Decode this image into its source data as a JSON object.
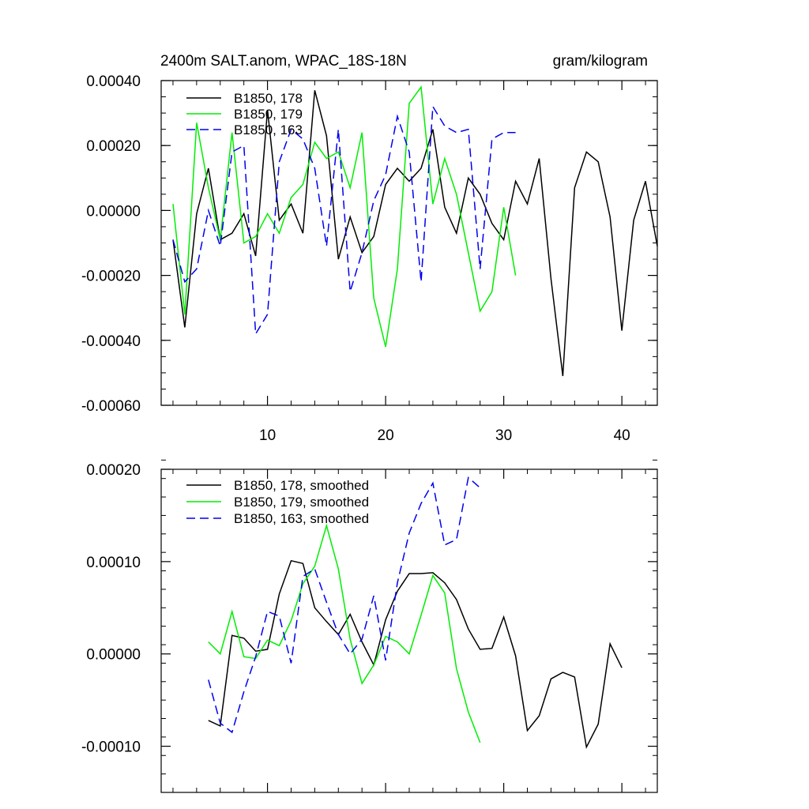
{
  "chart_data": [
    {
      "type": "line",
      "title": "2400m SALT.anom, WPAC_18S-18N",
      "units": "gram/kilogram",
      "xlim": [
        1,
        43
      ],
      "ylim": [
        -0.0006,
        0.0004
      ],
      "xticks": [
        10,
        20,
        30,
        40
      ],
      "xtick_labels": [
        "10",
        "20",
        "30",
        "40"
      ],
      "yticks": [
        -0.0006,
        -0.0004,
        -0.0002,
        0,
        0.0002,
        0.0004
      ],
      "ytick_labels": [
        "-0.00060",
        "-0.00040",
        "-0.00020",
        "0.00000",
        "0.00020",
        "0.00040"
      ],
      "legend_position": "top-left",
      "series": [
        {
          "name": "B1850, 178",
          "color": "#000000",
          "dash": "solid",
          "x": [
            2,
            3,
            4,
            5,
            6,
            7,
            8,
            9,
            10,
            11,
            12,
            13,
            14,
            15,
            16,
            17,
            18,
            19,
            20,
            21,
            22,
            23,
            24,
            25,
            26,
            27,
            28,
            29,
            30,
            31,
            32,
            33,
            34,
            35,
            36,
            37,
            38,
            39,
            40,
            41,
            42,
            43
          ],
          "values": [
            -9e-05,
            -0.00036,
            -1e-05,
            0.00013,
            -9e-05,
            -7e-05,
            -1e-05,
            -0.00014,
            0.00031,
            -3e-05,
            2e-05,
            -7e-05,
            0.00037,
            0.00023,
            -0.00015,
            -2e-05,
            -0.00013,
            -8e-05,
            8e-05,
            0.00013,
            9e-05,
            0.00013,
            0.00025,
            1e-05,
            -7e-05,
            0.0001,
            5e-05,
            -4e-05,
            -9e-05,
            9e-05,
            2e-05,
            0.00016,
            -0.00021,
            -0.00051,
            7e-05,
            0.00018,
            0.00015,
            -2e-05,
            -0.00037,
            -3e-05,
            9e-05,
            -0.00011
          ]
        },
        {
          "name": "B1850, 179",
          "color": "#00ee00",
          "dash": "solid",
          "x": [
            2,
            3,
            4,
            5,
            6,
            7,
            8,
            9,
            10,
            11,
            12,
            13,
            14,
            15,
            16,
            17,
            18,
            19,
            20,
            21,
            22,
            23,
            24,
            25,
            26,
            27,
            28,
            29,
            30,
            31
          ],
          "values": [
            2e-05,
            -0.00032,
            0.00027,
            7e-05,
            -9e-05,
            0.00024,
            -0.0001,
            -8e-05,
            -1e-05,
            -7e-05,
            4e-05,
            8e-05,
            0.00021,
            0.00016,
            0.00018,
            7e-05,
            0.00024,
            -0.00027,
            -0.00042,
            -0.00018,
            0.00033,
            0.00038,
            2e-05,
            0.00016,
            5e-05,
            -0.00013,
            -0.00031,
            -0.00025,
            1e-05,
            -0.0002
          ]
        },
        {
          "name": "B1850, 163",
          "color": "#0000ee",
          "dash": "dashed",
          "x": [
            2,
            3,
            4,
            5,
            6,
            7,
            8,
            9,
            10,
            11,
            12,
            13,
            14,
            15,
            16,
            17,
            18,
            19,
            20,
            21,
            22,
            23,
            24,
            25,
            26,
            27,
            28,
            29,
            30,
            31
          ],
          "values": [
            -9e-05,
            -0.00022,
            -0.00018,
            0.0,
            -0.00011,
            0.00018,
            0.0002,
            -0.00038,
            -0.00032,
            0.00015,
            0.00025,
            0.00022,
            0.00013,
            -0.00011,
            0.00025,
            -0.00025,
            -0.00013,
            3e-05,
            0.00011,
            0.00029,
            0.00018,
            -0.00022,
            0.00032,
            0.00026,
            0.00024,
            0.00025,
            -0.00018,
            0.00022,
            0.00024,
            0.00024
          ]
        }
      ]
    },
    {
      "type": "line",
      "title": "",
      "xlim": [
        1,
        43
      ],
      "ylim": [
        -0.00015,
        0.0002
      ],
      "xticks": [
        10,
        20,
        30,
        40
      ],
      "xtick_labels": [],
      "yticks": [
        -0.0001,
        0,
        0.0001,
        0.0002
      ],
      "ytick_labels": [
        "-0.00010",
        "0.00000",
        "0.00010",
        "0.00020"
      ],
      "legend_position": "top-left",
      "series": [
        {
          "name": "B1850, 178, smoothed",
          "color": "#000000",
          "dash": "solid",
          "x": [
            5,
            6,
            7,
            8,
            9,
            10,
            11,
            12,
            13,
            14,
            15,
            16,
            17,
            18,
            19,
            20,
            21,
            22,
            23,
            24,
            25,
            26,
            27,
            28,
            29,
            30,
            31,
            32,
            33,
            34,
            35,
            36,
            37,
            38,
            39,
            40
          ],
          "values": [
            -7.2e-05,
            -7.8e-05,
            2e-05,
            1.7e-05,
            3e-06,
            5e-06,
            6.5e-05,
            0.000101,
            9.8e-05,
            5e-05,
            3.5e-05,
            2.1e-05,
            4.3e-05,
            1.3e-05,
            -1.2e-05,
            3.7e-05,
            6.8e-05,
            8.7e-05,
            8.7e-05,
            8.8e-05,
            7.7e-05,
            5.9e-05,
            2.7e-05,
            5e-06,
            6e-06,
            4e-05,
            -2e-06,
            -8.3e-05,
            -6.7e-05,
            -2.7e-05,
            -2e-05,
            -2.5e-05,
            -0.000101,
            -7.6e-05,
            1.1e-05,
            -1.5e-05
          ]
        },
        {
          "name": "B1850, 179, smoothed",
          "color": "#00ee00",
          "dash": "solid",
          "x": [
            5,
            6,
            7,
            8,
            9,
            10,
            11,
            12,
            13,
            14,
            15,
            16,
            17,
            18,
            19,
            20,
            21,
            22,
            23,
            24,
            25,
            26,
            27,
            28
          ],
          "values": [
            1.3e-05,
            0.0,
            4.6e-05,
            -3e-06,
            -5e-06,
            1.5e-05,
            9e-06,
            3.6e-05,
            7.6e-05,
            9.5e-05,
            0.000139,
            9.2e-05,
            1.6e-05,
            -3.2e-05,
            -1.2e-05,
            1.9e-05,
            1.3e-05,
            0.0,
            4.2e-05,
            8.5e-05,
            6.6e-05,
            -1.6e-05,
            -6.3e-05,
            -9.6e-05
          ]
        },
        {
          "name": "B1850, 163, smoothed",
          "color": "#0000ee",
          "dash": "dashed",
          "x": [
            5,
            6,
            7,
            8,
            9,
            10,
            11,
            12,
            13,
            14,
            15,
            16,
            17,
            18,
            19,
            20,
            21,
            22,
            23,
            24,
            25,
            26,
            27,
            28
          ],
          "values": [
            -2.8e-05,
            -7.5e-05,
            -8.5e-05,
            -4.1e-05,
            -3e-06,
            4.6e-05,
            4.1e-05,
            -1e-05,
            8.4e-05,
            9.2e-05,
            5.6e-05,
            2.1e-05,
            0.0,
            1.6e-05,
            6.3e-05,
            -7e-06,
            7.7e-05,
            0.000131,
            0.000163,
            0.000185,
            0.000118,
            0.000124,
            0.000191,
            0.00018
          ]
        }
      ]
    }
  ]
}
